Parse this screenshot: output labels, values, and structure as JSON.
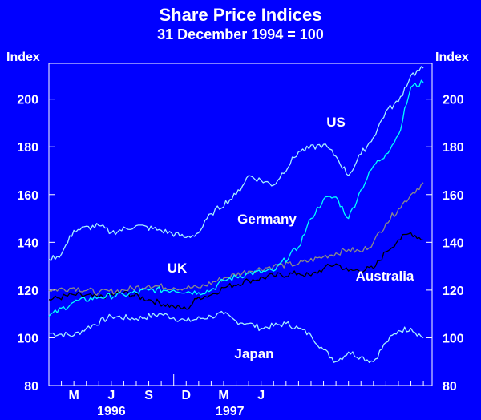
{
  "chart_data": {
    "type": "line",
    "title": "Share Price Indices",
    "subtitle": "31 December 1994 = 100",
    "ylabel_left": "Index",
    "ylabel_right": "Index",
    "ylim": [
      80,
      215
    ],
    "yticks": [
      80,
      100,
      120,
      140,
      160,
      180,
      200
    ],
    "x_months": [
      "M",
      "J",
      "S",
      "D",
      "M",
      "J"
    ],
    "x_years": [
      "1996",
      "1997"
    ],
    "series": [
      {
        "name": "Japan",
        "color": "#a6f0ff",
        "x": [
          0,
          2,
          3,
          5,
          7,
          9,
          11,
          13,
          14,
          15,
          16,
          17,
          19,
          20,
          21,
          22,
          23,
          24,
          25,
          26,
          27,
          28,
          29,
          30
        ],
        "values": [
          102,
          101,
          104,
          109,
          108,
          110,
          107,
          109,
          110,
          107,
          106,
          104,
          106,
          104,
          101,
          95,
          90,
          94,
          92,
          90,
          98,
          103,
          104,
          100
        ]
      },
      {
        "name": "Australia",
        "color": "#000000",
        "x": [
          0,
          2,
          4,
          6,
          8,
          10,
          11,
          12,
          13,
          14,
          16,
          18,
          20,
          21,
          22,
          23,
          24,
          26,
          27,
          28,
          29,
          30
        ],
        "values": [
          116,
          118,
          117,
          119,
          116,
          113,
          112,
          117,
          118,
          121,
          124,
          126,
          127,
          126,
          129,
          131,
          128,
          129,
          136,
          141,
          144,
          141
        ]
      },
      {
        "name": "UK",
        "color": "#8a8a8a",
        "x": [
          0,
          2,
          4,
          6,
          8,
          10,
          12,
          14,
          16,
          18,
          20,
          22,
          24,
          25,
          26,
          27,
          28,
          29,
          30
        ],
        "values": [
          120,
          121,
          119,
          120,
          122,
          121,
          121,
          125,
          128,
          130,
          131,
          134,
          137,
          136,
          140,
          148,
          154,
          160,
          165
        ]
      },
      {
        "name": "Germany",
        "color": "#00ffff",
        "x": [
          0,
          2,
          4,
          6,
          8,
          10,
          12,
          13,
          14,
          16,
          18,
          20,
          21,
          22,
          23,
          24,
          25,
          26,
          27,
          28,
          29,
          30
        ],
        "values": [
          109,
          115,
          117,
          118,
          120,
          120,
          119,
          120,
          124,
          127,
          128,
          138,
          150,
          158,
          159,
          150,
          162,
          172,
          177,
          185,
          205,
          207
        ]
      },
      {
        "name": "US",
        "color": "#a6f0ff",
        "x": [
          0,
          1,
          2,
          4,
          5,
          7,
          9,
          11,
          12,
          13,
          15,
          16,
          18,
          20,
          22,
          23,
          24,
          25,
          26,
          27,
          28,
          29,
          30
        ],
        "values": [
          133,
          135,
          145,
          147,
          144,
          147,
          145,
          142,
          144,
          152,
          160,
          168,
          164,
          178,
          181,
          176,
          168,
          177,
          184,
          195,
          199,
          210,
          213
        ]
      }
    ],
    "labels": {
      "US": "US",
      "Germany": "Germany",
      "UK": "UK",
      "Australia": "Australia",
      "Japan": "Japan"
    }
  }
}
